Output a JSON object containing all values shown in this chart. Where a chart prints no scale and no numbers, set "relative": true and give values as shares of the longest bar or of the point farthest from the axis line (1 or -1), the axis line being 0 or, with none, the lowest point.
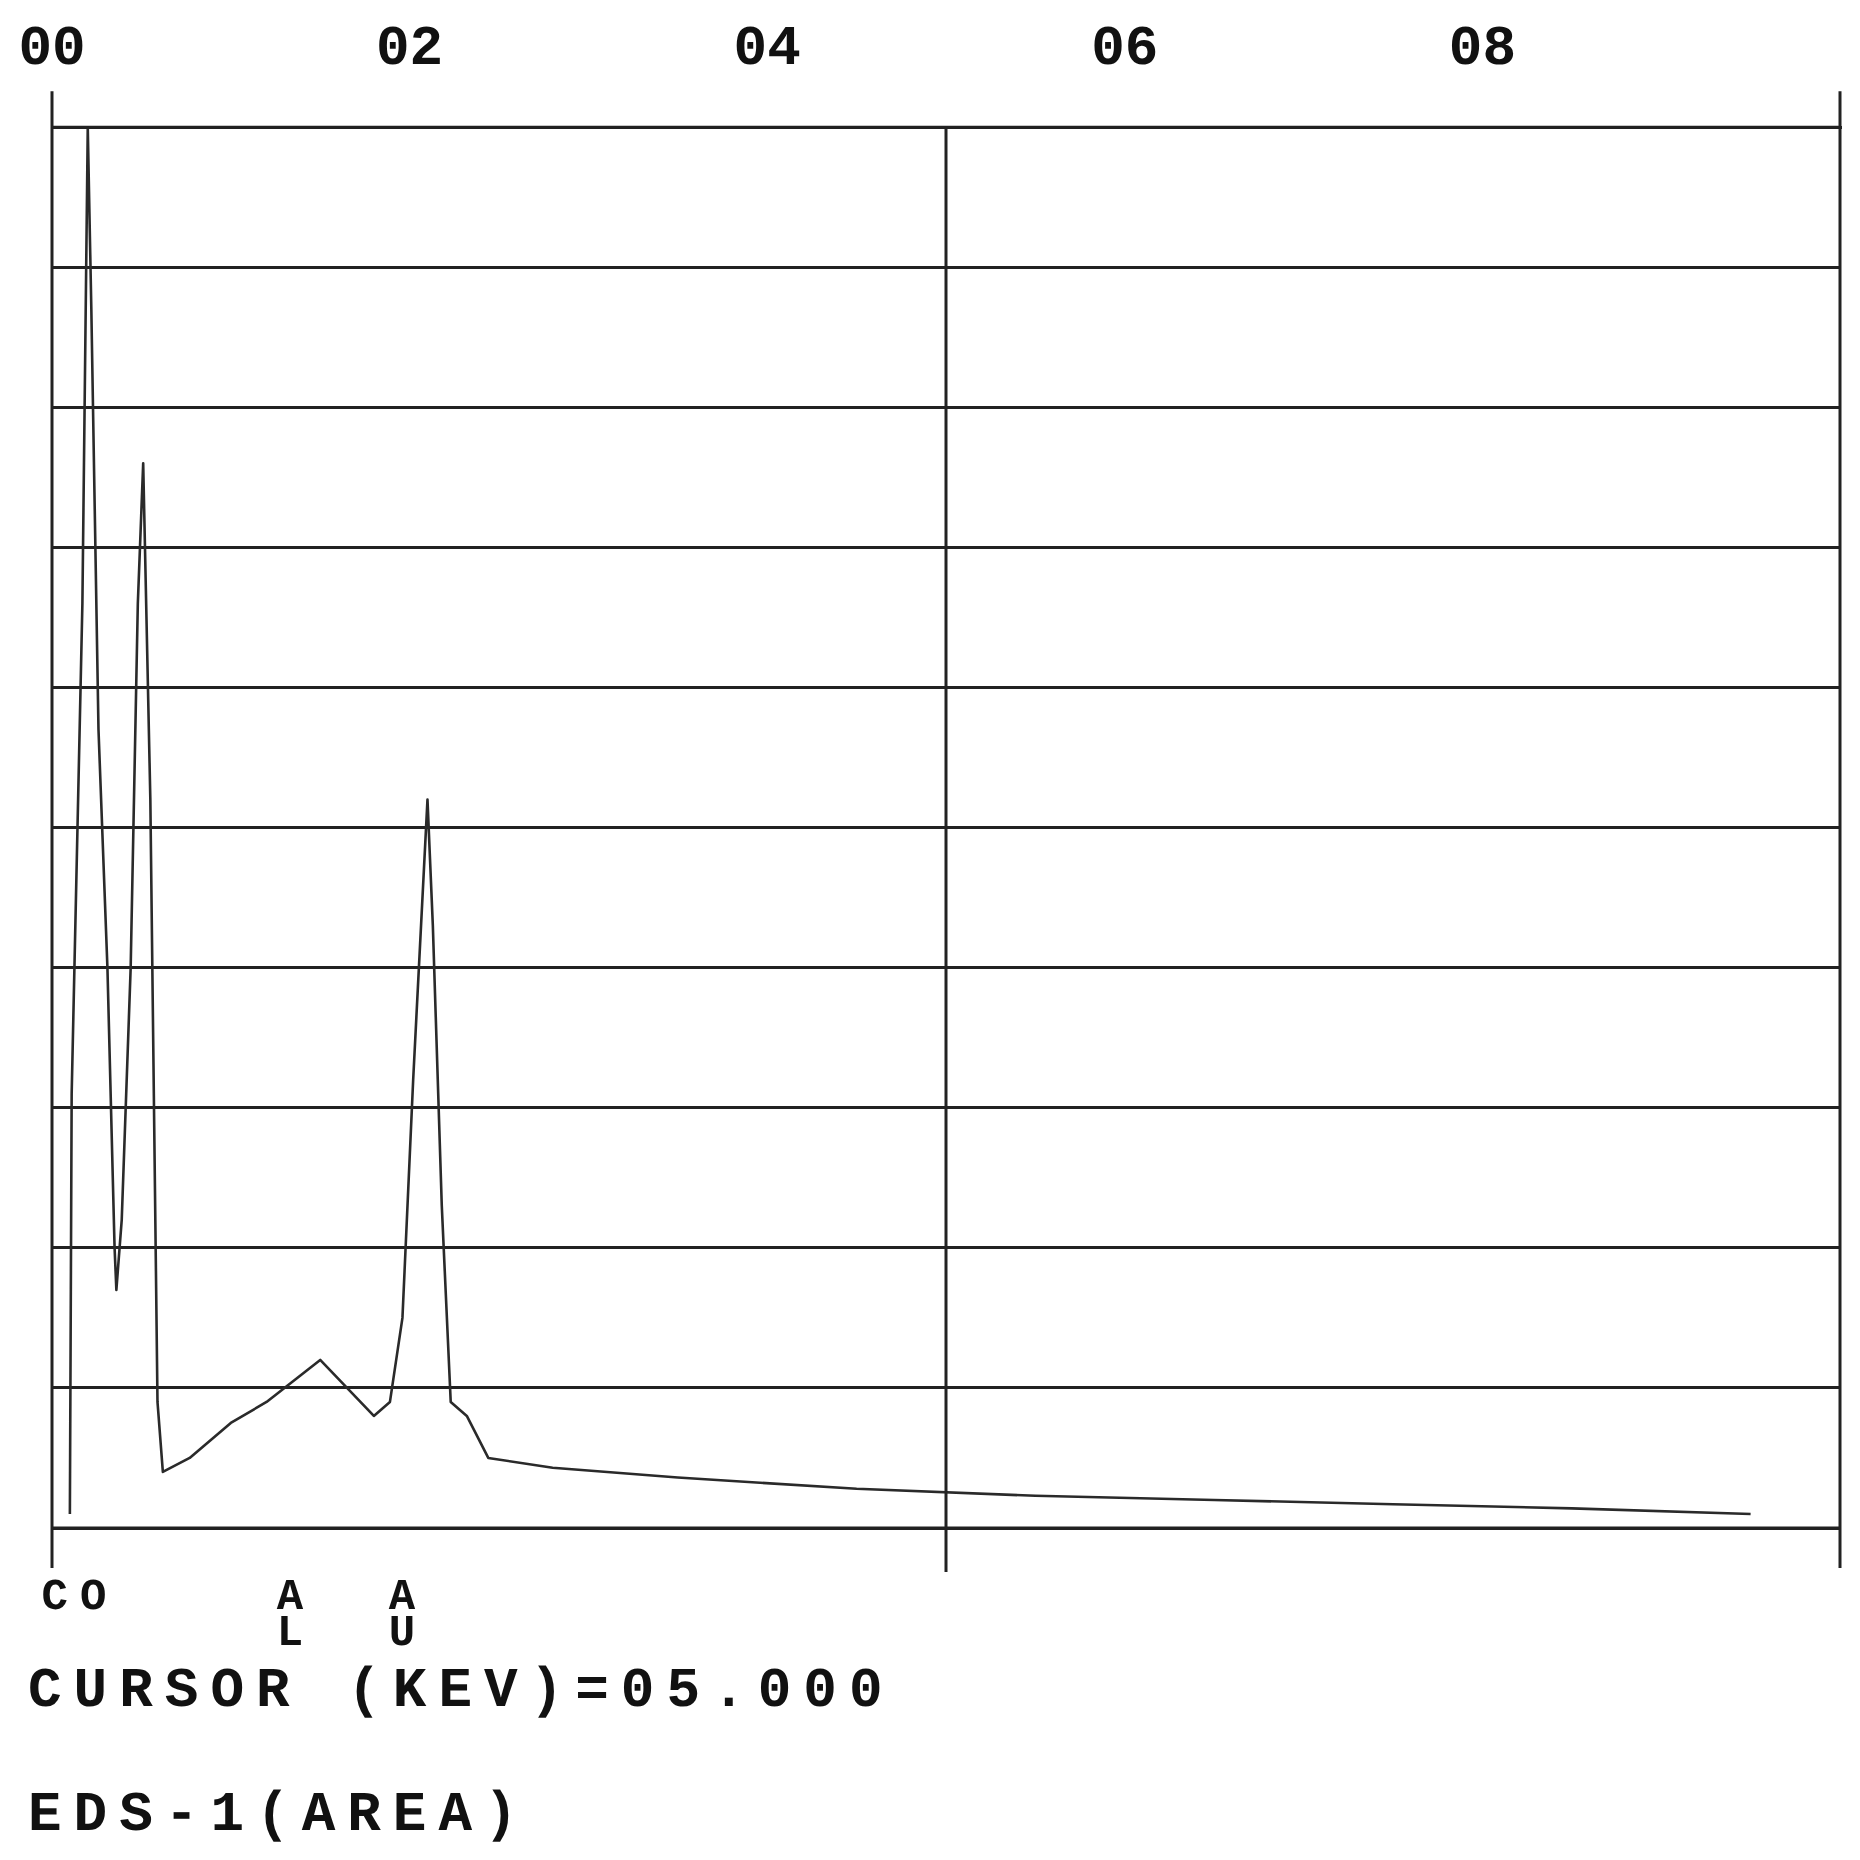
{
  "chart_data": {
    "type": "line",
    "relative": true,
    "color": "#2a2a2a",
    "marker": "none",
    "grid": "y",
    "legend": false,
    "x": [
      0.1,
      0.11,
      0.17,
      0.2,
      0.22,
      0.26,
      0.31,
      0.35,
      0.36,
      0.39,
      0.44,
      0.48,
      0.51,
      0.55,
      0.59,
      0.62,
      0.77,
      1.0,
      1.2,
      1.4,
      1.5,
      1.65,
      1.8,
      1.89,
      1.96,
      2.02,
      2.08,
      2.1,
      2.13,
      2.18,
      2.23,
      2.32,
      2.44,
      2.8,
      3.5,
      4.5,
      5.5,
      6.5,
      7.5,
      8.5,
      9.5
    ],
    "values": [
      0.01,
      0.31,
      0.66,
      1.0,
      0.87,
      0.57,
      0.4,
      0.2,
      0.17,
      0.22,
      0.4,
      0.66,
      0.76,
      0.52,
      0.09,
      0.04,
      0.05,
      0.075,
      0.09,
      0.11,
      0.12,
      0.1,
      0.08,
      0.09,
      0.15,
      0.32,
      0.47,
      0.52,
      0.43,
      0.23,
      0.09,
      0.08,
      0.05,
      0.043,
      0.036,
      0.028,
      0.023,
      0.02,
      0.017,
      0.014,
      0.01
    ],
    "xlim": [
      0,
      10
    ],
    "xticks": [
      {
        "value": 0,
        "label": "00"
      },
      {
        "value": 2,
        "label": "02"
      },
      {
        "value": 4,
        "label": "04"
      },
      {
        "value": 6,
        "label": "06"
      },
      {
        "value": 8,
        "label": "08"
      }
    ],
    "ref_lines": [
      {
        "axis": "x",
        "value": 5
      }
    ],
    "annotations": [
      "CO",
      "A\nL",
      "A\nU",
      "CURSOR (KEV)=05.000",
      "EDS-1(AREA)"
    ]
  }
}
